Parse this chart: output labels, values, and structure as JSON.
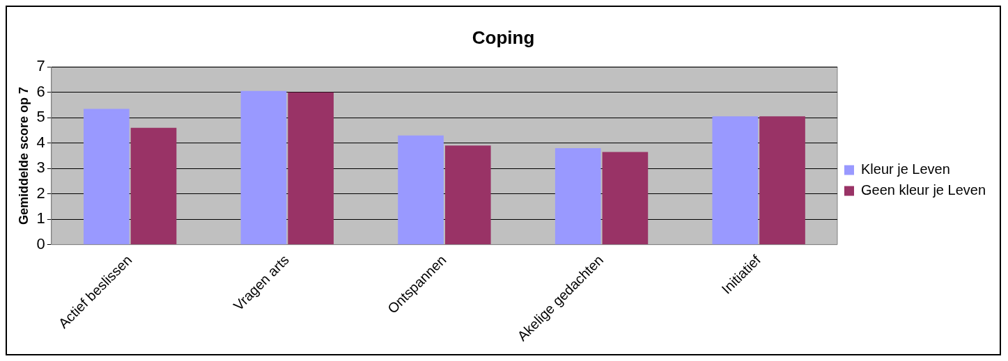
{
  "chart_data": {
    "type": "bar",
    "title": "Coping",
    "ylabel": "Gemiddelde score op 7",
    "categories": [
      "Actief beslissen",
      "Vragen arts",
      "Ontspannen",
      "Akelige gedachten",
      "Initiatief"
    ],
    "series": [
      {
        "name": "Kleur je Leven",
        "color": "#9999ff",
        "values": [
          5.35,
          6.05,
          4.3,
          3.8,
          5.05
        ]
      },
      {
        "name": "Geen kleur je Leven",
        "color": "#993366",
        "values": [
          4.6,
          6.0,
          3.9,
          3.65,
          5.05
        ]
      }
    ],
    "ylim": [
      0,
      7
    ],
    "yticks": [
      0,
      1,
      2,
      3,
      4,
      5,
      6,
      7
    ],
    "grid": "y",
    "legend": "right"
  }
}
